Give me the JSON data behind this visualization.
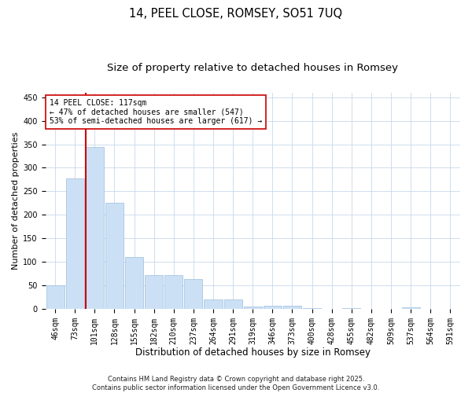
{
  "title": "14, PEEL CLOSE, ROMSEY, SO51 7UQ",
  "subtitle": "Size of property relative to detached houses in Romsey",
  "xlabel": "Distribution of detached houses by size in Romsey",
  "ylabel": "Number of detached properties",
  "categories": [
    "46sqm",
    "73sqm",
    "101sqm",
    "128sqm",
    "155sqm",
    "182sqm",
    "210sqm",
    "237sqm",
    "264sqm",
    "291sqm",
    "319sqm",
    "346sqm",
    "373sqm",
    "400sqm",
    "428sqm",
    "455sqm",
    "482sqm",
    "509sqm",
    "537sqm",
    "564sqm",
    "591sqm"
  ],
  "values": [
    50,
    277,
    344,
    226,
    110,
    71,
    71,
    63,
    20,
    20,
    5,
    7,
    7,
    1,
    0,
    1,
    0,
    0,
    3,
    0,
    0
  ],
  "bar_color": "#cce0f5",
  "bar_edge_color": "#9bbedd",
  "background_color": "#ffffff",
  "grid_color": "#c8d8eb",
  "vline_color": "#cc0000",
  "annotation_text": "14 PEEL CLOSE: 117sqm\n← 47% of detached houses are smaller (547)\n53% of semi-detached houses are larger (617) →",
  "annotation_box_edge": "#cc0000",
  "ylim": [
    0,
    460
  ],
  "yticks": [
    0,
    50,
    100,
    150,
    200,
    250,
    300,
    350,
    400,
    450
  ],
  "title_fontsize": 10.5,
  "subtitle_fontsize": 9.5,
  "xlabel_fontsize": 8.5,
  "ylabel_fontsize": 8,
  "tick_fontsize": 7,
  "annotation_fontsize": 7,
  "footer_line1": "Contains HM Land Registry data © Crown copyright and database right 2025.",
  "footer_line2": "Contains public sector information licensed under the Open Government Licence v3.0.",
  "footer_fontsize": 6
}
